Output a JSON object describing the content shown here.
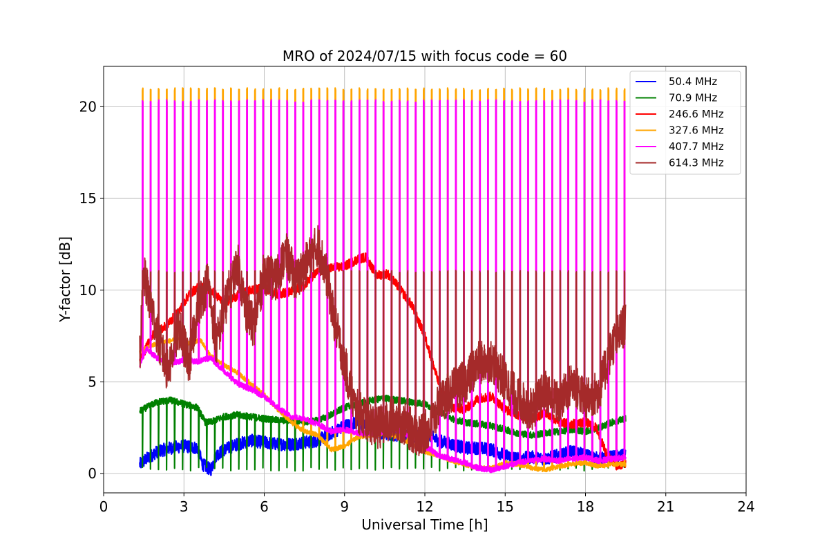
{
  "chart_data": {
    "type": "line",
    "title": "MRO of 2024/07/15 with focus code = 60",
    "xlabel": "Universal Time [h]",
    "ylabel": "Y-factor [dB]",
    "xlim": [
      0,
      24
    ],
    "ylim": [
      -1.05,
      22.2
    ],
    "xticks": [
      0,
      3,
      6,
      9,
      12,
      15,
      18,
      21,
      24
    ],
    "yticks": [
      0,
      5,
      10,
      15,
      20
    ],
    "grid": true,
    "legend_position": "top-right",
    "spikes": {
      "start": 1.45,
      "end": 19.45,
      "count": 61,
      "top_327_6": 20.95,
      "top_407_7": 20.3,
      "top_614_3": 11.0
    },
    "series": [
      {
        "name": " 50.4 MHz",
        "color": "#0000ff",
        "x": [
          1.35,
          1.6,
          2.0,
          2.5,
          3.0,
          3.5,
          3.7,
          4.0,
          4.2,
          4.5,
          5.0,
          5.5,
          6.0,
          6.5,
          7.0,
          7.5,
          8.0,
          8.5,
          9.0,
          9.5,
          10.0,
          10.5,
          11.0,
          11.5,
          12.0,
          12.5,
          13.0,
          13.5,
          14.0,
          14.5,
          15.0,
          15.5,
          16.0,
          16.5,
          17.0,
          17.5,
          18.0,
          18.5,
          19.0,
          19.5
        ],
        "y": [
          0.5,
          0.8,
          1.2,
          1.4,
          1.5,
          1.4,
          0.5,
          0.2,
          1.0,
          1.3,
          1.6,
          1.8,
          1.7,
          1.6,
          1.6,
          1.7,
          1.8,
          2.2,
          2.6,
          2.8,
          2.4,
          2.2,
          2.1,
          2.0,
          2.2,
          1.8,
          1.6,
          1.4,
          1.4,
          1.3,
          1.0,
          0.8,
          0.9,
          0.8,
          1.0,
          1.2,
          1.0,
          0.8,
          0.9,
          1.0
        ]
      },
      {
        "name": " 70.9 MHz",
        "color": "#008000",
        "x": [
          1.35,
          1.6,
          2.0,
          2.5,
          3.0,
          3.5,
          3.8,
          4.0,
          4.5,
          5.0,
          5.5,
          6.0,
          6.5,
          7.0,
          7.5,
          8.0,
          8.5,
          9.0,
          9.5,
          10.0,
          10.5,
          11.0,
          11.5,
          12.0,
          12.5,
          13.0,
          13.5,
          14.0,
          14.5,
          15.0,
          15.5,
          16.0,
          16.5,
          17.0,
          17.5,
          18.0,
          18.5,
          19.0,
          19.5
        ],
        "y": [
          3.4,
          3.6,
          3.9,
          4.0,
          3.8,
          3.6,
          2.8,
          2.8,
          3.1,
          3.2,
          3.1,
          3.0,
          2.9,
          2.9,
          2.8,
          2.9,
          3.2,
          3.6,
          3.8,
          4.0,
          4.1,
          4.0,
          3.9,
          3.8,
          3.4,
          3.0,
          2.8,
          2.7,
          2.6,
          2.4,
          2.2,
          2.1,
          2.2,
          2.3,
          2.4,
          2.3,
          2.5,
          2.8,
          3.0
        ]
      },
      {
        "name": " 246.6 MHz",
        "color": "#ff0000",
        "x": [
          1.35,
          1.8,
          2.3,
          2.8,
          3.2,
          3.6,
          4.0,
          4.5,
          5.0,
          5.5,
          6.0,
          6.5,
          7.0,
          7.5,
          8.0,
          8.5,
          9.0,
          9.5,
          9.8,
          10.2,
          10.6,
          11.0,
          11.5,
          12.0,
          12.3,
          12.6,
          13.0,
          13.5,
          14.0,
          14.5,
          15.0,
          15.5,
          16.0,
          16.5,
          17.0,
          17.5,
          18.0,
          18.4,
          18.8,
          19.2,
          19.5
        ],
        "y": [
          6.1,
          7.5,
          8.0,
          8.8,
          9.8,
          10.2,
          10.0,
          9.3,
          9.7,
          10.0,
          10.1,
          9.8,
          9.9,
          10.3,
          11.0,
          11.2,
          11.3,
          11.7,
          11.8,
          10.8,
          10.9,
          10.2,
          9.2,
          7.5,
          6.0,
          4.5,
          3.6,
          3.5,
          4.1,
          4.2,
          3.5,
          3.2,
          3.0,
          3.3,
          2.8,
          2.7,
          2.8,
          2.5,
          1.0,
          0.4,
          0.6
        ]
      },
      {
        "name": " 327.6 MHz",
        "color": "#ffa500",
        "x": [
          1.35,
          1.8,
          2.3,
          2.8,
          3.2,
          3.6,
          4.0,
          4.5,
          5.0,
          5.5,
          6.0,
          6.5,
          7.0,
          7.5,
          8.0,
          8.5,
          9.0,
          9.5,
          10.0,
          10.5,
          11.0,
          11.5,
          12.0,
          12.5,
          13.0,
          13.5,
          14.0,
          14.5,
          15.0,
          15.5,
          16.0,
          16.5,
          17.0,
          17.5,
          18.0,
          18.5,
          19.0,
          19.5
        ],
        "y": [
          6.6,
          7.0,
          7.2,
          7.3,
          7.1,
          7.3,
          6.4,
          5.9,
          5.5,
          4.9,
          4.3,
          3.5,
          2.8,
          2.3,
          2.1,
          1.3,
          1.5,
          2.0,
          2.1,
          2.2,
          2.0,
          1.6,
          1.2,
          1.0,
          0.7,
          0.5,
          0.3,
          0.3,
          0.6,
          0.5,
          0.3,
          0.2,
          0.4,
          0.5,
          0.6,
          0.4,
          0.5,
          0.5
        ]
      },
      {
        "name": " 407.7 MHz",
        "color": "#ff00ff",
        "x": [
          1.35,
          1.6,
          2.0,
          2.5,
          3.0,
          3.5,
          4.0,
          4.5,
          5.0,
          5.5,
          6.0,
          6.5,
          7.0,
          7.5,
          8.0,
          8.5,
          9.0,
          9.5,
          10.0,
          10.5,
          11.0,
          11.5,
          12.0,
          12.5,
          13.0,
          13.5,
          14.0,
          14.5,
          15.0,
          15.5,
          16.0,
          16.5,
          17.0,
          17.5,
          18.0,
          18.5,
          19.0,
          19.5
        ],
        "y": [
          5.9,
          6.8,
          6.3,
          6.0,
          6.2,
          6.1,
          6.3,
          5.6,
          4.9,
          4.6,
          4.2,
          3.6,
          3.1,
          3.0,
          2.7,
          2.3,
          2.4,
          2.2,
          2.2,
          2.3,
          2.4,
          2.0,
          1.5,
          1.0,
          0.8,
          0.6,
          0.3,
          0.2,
          0.4,
          0.6,
          0.7,
          0.8,
          0.7,
          0.8,
          0.9,
          0.7,
          0.8,
          0.9
        ]
      },
      {
        "name": " 614.3 MHz",
        "color": "#a52a2a",
        "x": [
          1.35,
          1.5,
          1.8,
          2.1,
          2.4,
          2.8,
          3.2,
          3.5,
          3.9,
          4.2,
          4.6,
          5.0,
          5.3,
          5.6,
          6.0,
          6.4,
          6.8,
          7.2,
          7.6,
          8.0,
          8.3,
          8.6,
          9.0,
          9.4,
          9.8,
          10.2,
          10.6,
          11.0,
          11.4,
          11.8,
          12.2,
          12.6,
          13.0,
          13.5,
          14.0,
          14.5,
          15.0,
          15.5,
          16.0,
          16.5,
          17.0,
          17.5,
          18.0,
          18.5,
          19.0,
          19.5
        ],
        "y": [
          6.5,
          10.8,
          9.0,
          7.0,
          5.5,
          8.0,
          6.0,
          9.0,
          10.5,
          7.0,
          9.5,
          11.5,
          9.0,
          8.0,
          11.0,
          10.5,
          12.0,
          10.5,
          11.5,
          12.5,
          11.0,
          8.5,
          6.0,
          3.5,
          3.0,
          2.5,
          2.8,
          3.0,
          2.5,
          2.0,
          2.5,
          4.0,
          4.5,
          5.0,
          6.0,
          6.2,
          5.0,
          4.0,
          3.5,
          4.5,
          3.8,
          5.0,
          4.0,
          4.5,
          7.0,
          8.2
        ]
      }
    ]
  }
}
